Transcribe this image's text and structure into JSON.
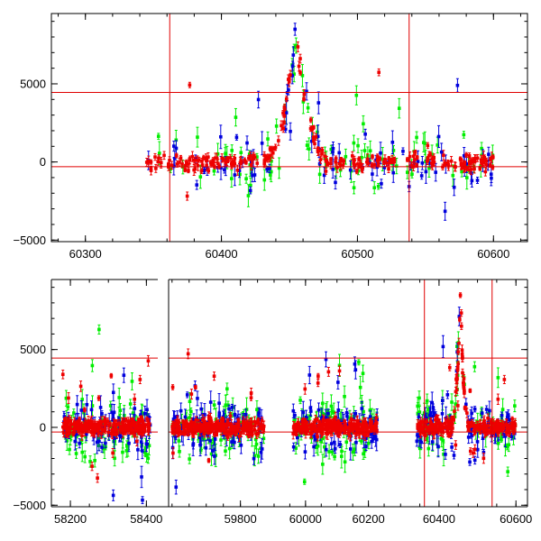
{
  "chart_data": [
    {
      "type": "scatter",
      "panel": "top",
      "x_ticks": [
        "60300",
        "60400",
        "60500",
        "60600"
      ],
      "y_ticks": [
        "−5000",
        "0",
        "5000"
      ],
      "xlim": [
        60275,
        60625
      ],
      "ylim": [
        -5100,
        9500
      ],
      "hlines": [
        4450,
        -300
      ],
      "vlines": [
        60362,
        60538
      ],
      "reference_line_color": "#e00000",
      "series_colors": [
        "#0000dd",
        "#00ee00",
        "#ee0000"
      ],
      "segments": [
        [
          60345,
          60600
        ]
      ],
      "flare": {
        "x0": 60430,
        "peak_x": 60455,
        "x1": 60478,
        "peak_y": 9000
      }
    },
    {
      "type": "scatter",
      "panel": "bottom",
      "x_ticks": [
        "58200",
        "58400",
        "59800",
        "60000",
        "60200",
        "60400",
        "60600"
      ],
      "y_ticks": [
        "−5000",
        "0",
        "5000"
      ],
      "ylim": [
        -5100,
        9500
      ],
      "hlines": [
        4450,
        -300
      ],
      "reference_line_color": "#e00000",
      "series_colors": [
        "#0000dd",
        "#00ee00",
        "#ee0000"
      ],
      "segments": [
        {
          "xlim": [
            58150,
            58430
          ],
          "data": [
            58180,
            58410
          ]
        },
        {
          "xlim": [
            59590,
            59880
          ],
          "data": [
            59600,
            59870
          ]
        },
        {
          "xlim": [
            59880,
            60290
          ],
          "data": [
            59960,
            60230
          ]
        },
        {
          "xlim": [
            60290,
            60630
          ],
          "data": [
            60340,
            60600
          ],
          "vlines": [
            60362,
            60538
          ],
          "flare": {
            "x0": 60430,
            "peak_x": 60455,
            "x1": 60478,
            "peak_y": 9000
          }
        }
      ]
    }
  ]
}
